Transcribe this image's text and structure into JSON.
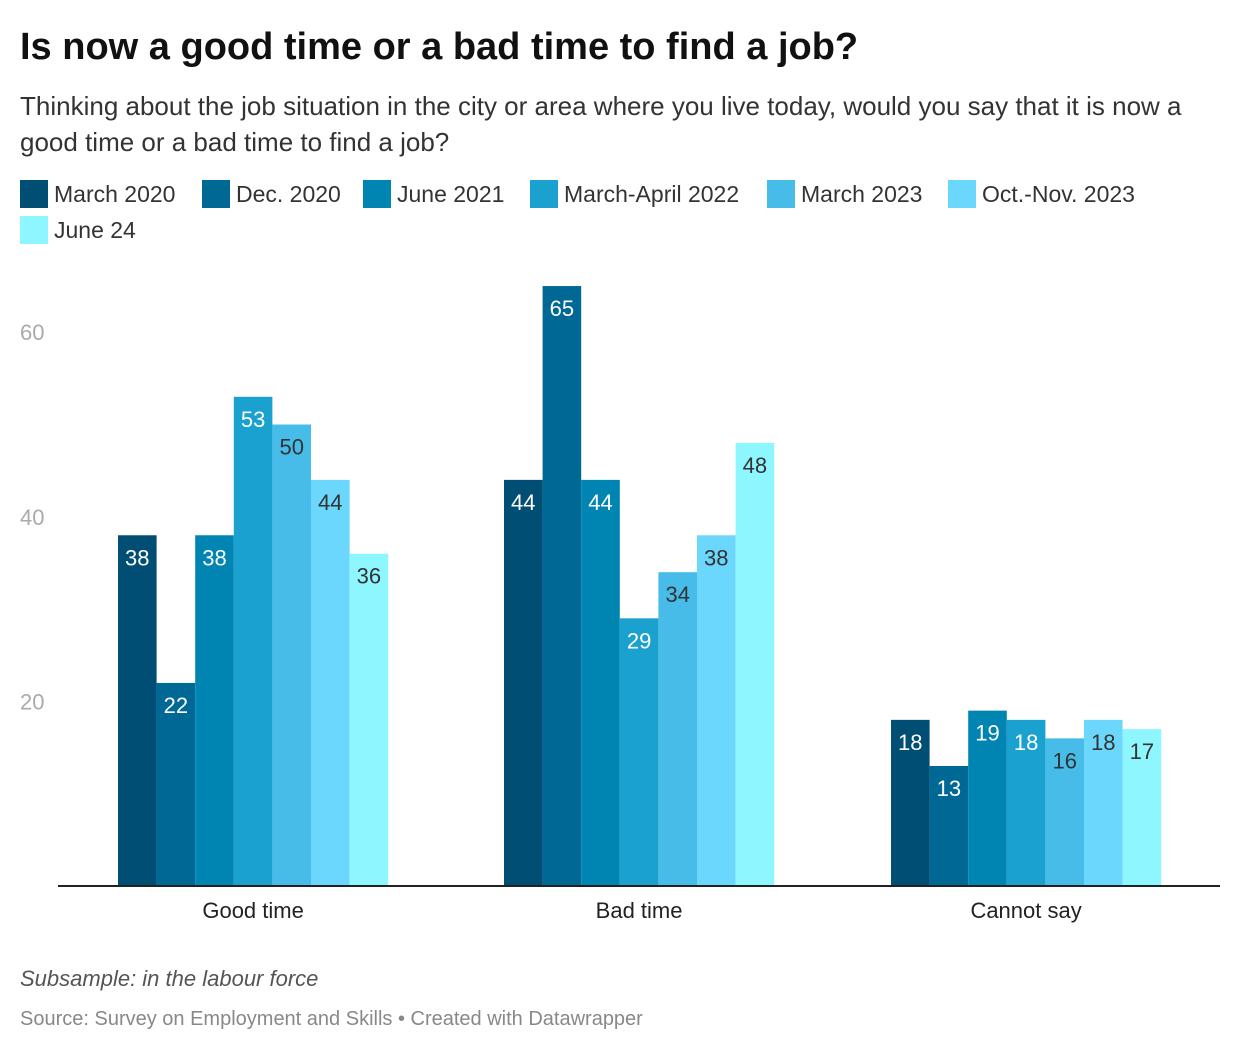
{
  "header": {
    "title": "Is now a good time or a bad time to find a job?",
    "subtitle": "Thinking about the job situation in the city or area where you live today, would you say that it is now a good time or a bad time to find a job?"
  },
  "footer": {
    "notes": "Subsample: in the labour force",
    "source": "Source: Survey on Employment and Skills • Created with Datawrapper"
  },
  "chart_data": {
    "type": "bar",
    "categories": [
      "Good time",
      "Bad time",
      "Cannot say"
    ],
    "series": [
      {
        "name": "March 2020",
        "color": "#004e73",
        "values": [
          38,
          44,
          18
        ]
      },
      {
        "name": "Dec. 2020",
        "color": "#006894",
        "values": [
          22,
          65,
          13
        ]
      },
      {
        "name": "June 2021",
        "color": "#0085b2",
        "values": [
          38,
          44,
          19
        ]
      },
      {
        "name": "March-April 2022",
        "color": "#1aa1cf",
        "values": [
          53,
          29,
          18
        ]
      },
      {
        "name": "March 2023",
        "color": "#47bce9",
        "values": [
          50,
          34,
          16
        ]
      },
      {
        "name": "Oct.-Nov. 2023",
        "color": "#6cd7fc",
        "values": [
          44,
          38,
          18
        ]
      },
      {
        "name": "June 24",
        "color": "#8ef6fe",
        "values": [
          36,
          48,
          17
        ]
      }
    ],
    "yticks": [
      20,
      40,
      60
    ],
    "ylim": [
      0,
      65
    ],
    "grid": false,
    "legend_position": "top-left"
  }
}
